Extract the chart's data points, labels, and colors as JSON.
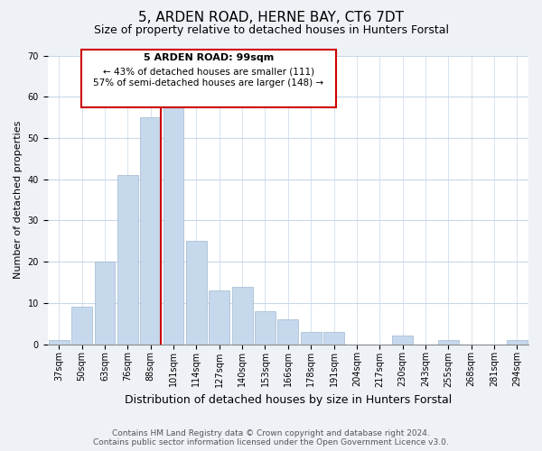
{
  "title": "5, ARDEN ROAD, HERNE BAY, CT6 7DT",
  "subtitle": "Size of property relative to detached houses in Hunters Forstal",
  "xlabel": "Distribution of detached houses by size in Hunters Forstal",
  "ylabel": "Number of detached properties",
  "bar_labels": [
    "37sqm",
    "50sqm",
    "63sqm",
    "76sqm",
    "88sqm",
    "101sqm",
    "114sqm",
    "127sqm",
    "140sqm",
    "153sqm",
    "166sqm",
    "178sqm",
    "191sqm",
    "204sqm",
    "217sqm",
    "230sqm",
    "243sqm",
    "255sqm",
    "268sqm",
    "281sqm",
    "294sqm"
  ],
  "bar_values": [
    1,
    9,
    20,
    41,
    55,
    58,
    25,
    13,
    14,
    8,
    6,
    3,
    3,
    0,
    0,
    2,
    0,
    1,
    0,
    0,
    1
  ],
  "bar_color": "#c5d8ec",
  "highlight_line_color": "#cc0000",
  "highlight_line_after_bar": 4,
  "ylim": [
    0,
    70
  ],
  "yticks": [
    0,
    10,
    20,
    30,
    40,
    50,
    60,
    70
  ],
  "annotation_title": "5 ARDEN ROAD: 99sqm",
  "annotation_line1": "← 43% of detached houses are smaller (111)",
  "annotation_line2": "57% of semi-detached houses are larger (148) →",
  "annotation_box_color": "#ffffff",
  "annotation_box_edge": "#cc0000",
  "footer1": "Contains HM Land Registry data © Crown copyright and database right 2024.",
  "footer2": "Contains public sector information licensed under the Open Government Licence v3.0.",
  "background_color": "#eef2f7",
  "plot_bg_color": "#ffffff",
  "grid_color": "#c8d8e8",
  "title_fontsize": 11,
  "subtitle_fontsize": 9,
  "xlabel_fontsize": 9,
  "ylabel_fontsize": 8,
  "tick_fontsize": 7,
  "footer_fontsize": 6.5
}
